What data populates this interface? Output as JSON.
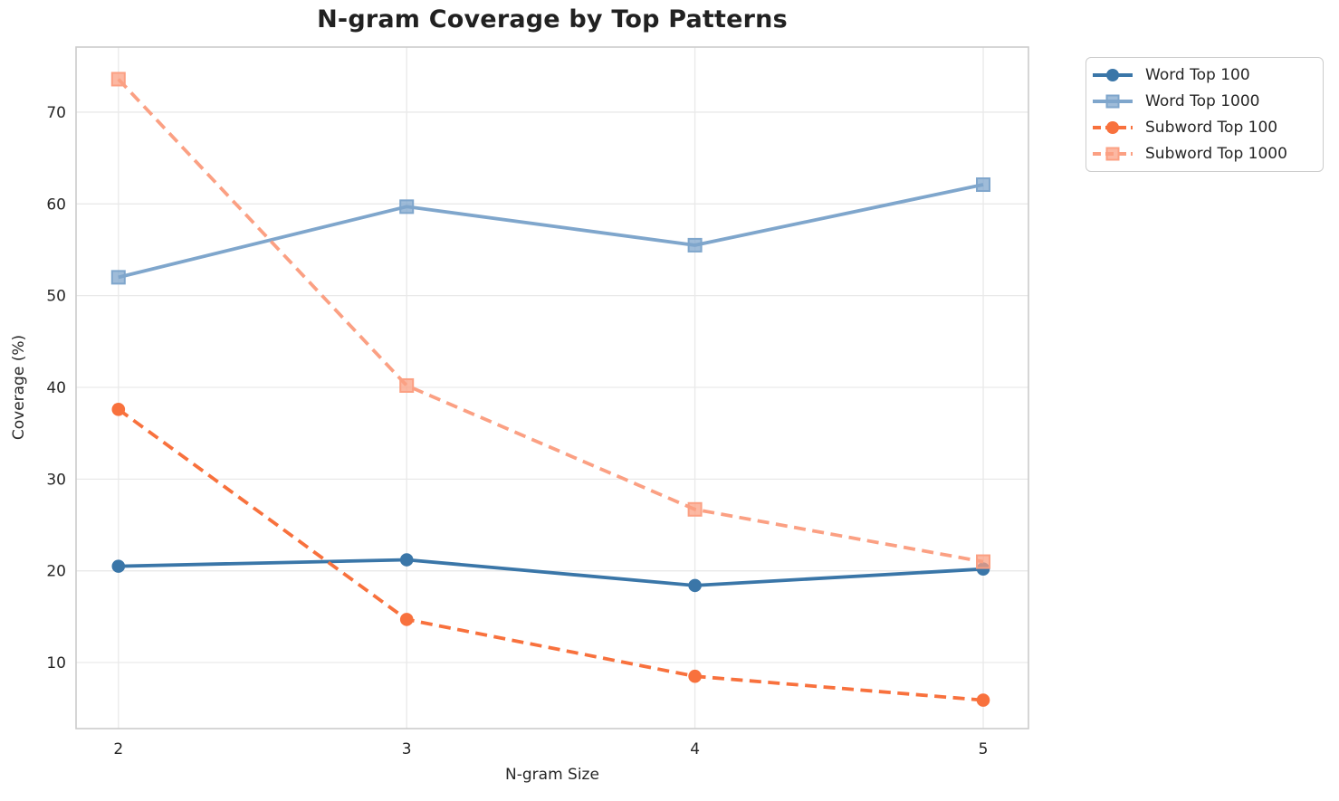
{
  "figure": {
    "background": "#ffffff",
    "text_color": "#262626",
    "grid_color": "#e9e9e9",
    "spine_color": "#cccccc"
  },
  "chart_data": {
    "type": "line",
    "title": "N-gram Coverage by Top Patterns",
    "xlabel": "N-gram Size",
    "ylabel": "Coverage (%)",
    "x": [
      2,
      3,
      4,
      5
    ],
    "xticks": [
      "2",
      "3",
      "4",
      "5"
    ],
    "yticks": [
      "10",
      "20",
      "30",
      "40",
      "50",
      "60",
      "70"
    ],
    "ytick_values": [
      10,
      20,
      30,
      40,
      50,
      60,
      70
    ],
    "xlim": [
      1.853,
      5.157
    ],
    "ylim": [
      2.8,
      77.1
    ],
    "grid": true,
    "legend_position": "outside-upper-right",
    "series": [
      {
        "name": "Word Top 100",
        "values": [
          20.5,
          21.2,
          18.4,
          20.2
        ],
        "color": "#3a76a8",
        "marker": "circle",
        "linestyle": "solid"
      },
      {
        "name": "Word Top 1000",
        "values": [
          52.0,
          59.7,
          55.5,
          62.1
        ],
        "color": "#7fa6cc",
        "marker": "square",
        "linestyle": "solid"
      },
      {
        "name": "Subword Top 100",
        "values": [
          37.6,
          14.7,
          8.5,
          5.9
        ],
        "color": "#f8713d",
        "marker": "circle",
        "linestyle": "dashed"
      },
      {
        "name": "Subword Top 1000",
        "values": [
          73.6,
          40.2,
          26.7,
          21.0
        ],
        "color": "#fba083",
        "marker": "square",
        "linestyle": "dashed"
      }
    ]
  }
}
